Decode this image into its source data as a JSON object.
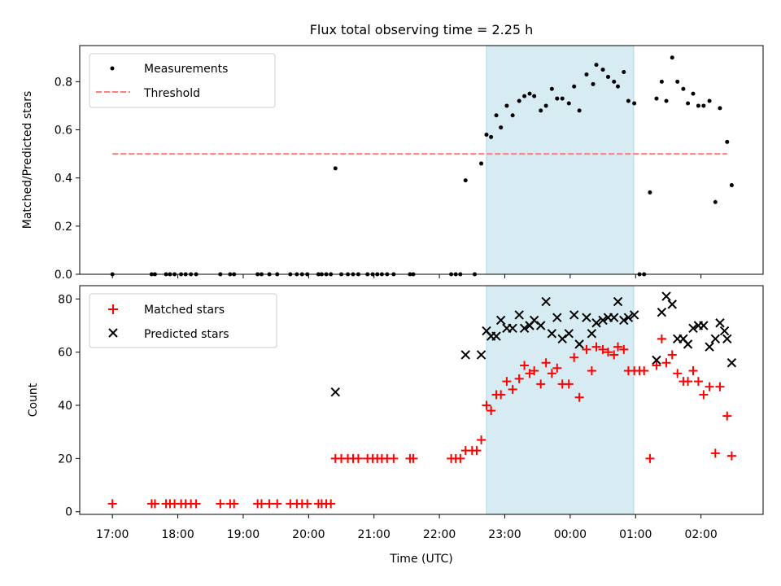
{
  "chart_data": {
    "type": "scatter",
    "title": "Flux total observing time = 2.25 h",
    "xlabel": "Time (UTC)",
    "x_unit": "hours, continuing past midnight (24.0 = 00:00)",
    "xlim": [
      16.5,
      26.95
    ],
    "xticks": [
      {
        "x": 17,
        "label": "17:00"
      },
      {
        "x": 18,
        "label": "18:00"
      },
      {
        "x": 19,
        "label": "19:00"
      },
      {
        "x": 20,
        "label": "20:00"
      },
      {
        "x": 21,
        "label": "21:00"
      },
      {
        "x": 22,
        "label": "22:00"
      },
      {
        "x": 23,
        "label": "23:00"
      },
      {
        "x": 24,
        "label": "00:00"
      },
      {
        "x": 25,
        "label": "01:00"
      },
      {
        "x": 26,
        "label": "02:00"
      }
    ],
    "highlight_span": {
      "x0": 22.72,
      "x1": 24.97,
      "color": "#add8e6"
    },
    "panels": [
      {
        "ylabel": "Matched/Predicted stars",
        "ylim": [
          0,
          0.95
        ],
        "yticks": [
          "0.0",
          "0.2",
          "0.4",
          "0.6",
          "0.8"
        ],
        "legend_position": "upper left",
        "series": [
          {
            "name": "Measurements",
            "kind": "dot",
            "color": "#000000",
            "points": [
              [
                17.0,
                0.0
              ],
              [
                17.6,
                0.0
              ],
              [
                17.65,
                0.0
              ],
              [
                17.82,
                0.0
              ],
              [
                17.88,
                0.0
              ],
              [
                17.95,
                0.0
              ],
              [
                18.05,
                0.0
              ],
              [
                18.12,
                0.0
              ],
              [
                18.2,
                0.0
              ],
              [
                18.28,
                0.0
              ],
              [
                18.65,
                0.0
              ],
              [
                18.8,
                0.0
              ],
              [
                18.86,
                0.0
              ],
              [
                19.22,
                0.0
              ],
              [
                19.28,
                0.0
              ],
              [
                19.4,
                0.0
              ],
              [
                19.52,
                0.0
              ],
              [
                19.72,
                0.0
              ],
              [
                19.82,
                0.0
              ],
              [
                19.9,
                0.0
              ],
              [
                19.98,
                0.0
              ],
              [
                20.15,
                0.0
              ],
              [
                20.2,
                0.0
              ],
              [
                20.27,
                0.0
              ],
              [
                20.34,
                0.0
              ],
              [
                20.41,
                0.44
              ],
              [
                20.5,
                0.0
              ],
              [
                20.6,
                0.0
              ],
              [
                20.68,
                0.0
              ],
              [
                20.76,
                0.0
              ],
              [
                20.9,
                0.0
              ],
              [
                20.98,
                0.0
              ],
              [
                21.05,
                0.0
              ],
              [
                21.12,
                0.0
              ],
              [
                21.2,
                0.0
              ],
              [
                21.3,
                0.0
              ],
              [
                21.55,
                0.0
              ],
              [
                21.6,
                0.0
              ],
              [
                22.18,
                0.0
              ],
              [
                22.25,
                0.0
              ],
              [
                22.32,
                0.0
              ],
              [
                22.4,
                0.39
              ],
              [
                22.54,
                0.0
              ],
              [
                22.64,
                0.46
              ],
              [
                22.72,
                0.58
              ],
              [
                22.79,
                0.57
              ],
              [
                22.87,
                0.66
              ],
              [
                22.94,
                0.61
              ],
              [
                23.03,
                0.7
              ],
              [
                23.12,
                0.66
              ],
              [
                23.22,
                0.72
              ],
              [
                23.3,
                0.74
              ],
              [
                23.38,
                0.75
              ],
              [
                23.45,
                0.74
              ],
              [
                23.55,
                0.68
              ],
              [
                23.63,
                0.7
              ],
              [
                23.72,
                0.77
              ],
              [
                23.8,
                0.73
              ],
              [
                23.88,
                0.73
              ],
              [
                23.98,
                0.71
              ],
              [
                24.06,
                0.78
              ],
              [
                24.14,
                0.68
              ],
              [
                24.25,
                0.83
              ],
              [
                24.35,
                0.79
              ],
              [
                24.4,
                0.87
              ],
              [
                24.5,
                0.85
              ],
              [
                24.58,
                0.82
              ],
              [
                24.67,
                0.8
              ],
              [
                24.73,
                0.78
              ],
              [
                24.82,
                0.84
              ],
              [
                24.89,
                0.72
              ],
              [
                24.98,
                0.71
              ],
              [
                25.06,
                0.0
              ],
              [
                25.13,
                0.0
              ],
              [
                25.22,
                0.34
              ],
              [
                25.32,
                0.73
              ],
              [
                25.4,
                0.8
              ],
              [
                25.47,
                0.72
              ],
              [
                25.56,
                0.9
              ],
              [
                25.64,
                0.8
              ],
              [
                25.73,
                0.77
              ],
              [
                25.8,
                0.71
              ],
              [
                25.88,
                0.75
              ],
              [
                25.96,
                0.7
              ],
              [
                26.04,
                0.7
              ],
              [
                26.13,
                0.72
              ],
              [
                26.22,
                0.3
              ],
              [
                26.29,
                0.69
              ],
              [
                26.4,
                0.55
              ],
              [
                26.47,
                0.37
              ]
            ]
          },
          {
            "name": "Threshold",
            "kind": "dashed-line",
            "color": "#ff7f7f",
            "x": [
              17.0,
              26.4
            ],
            "y": [
              0.5,
              0.5
            ]
          }
        ]
      },
      {
        "ylabel": "Count",
        "ylim": [
          -1,
          85
        ],
        "yticks": [
          "0",
          "20",
          "40",
          "60",
          "80"
        ],
        "legend_position": "upper left",
        "series": [
          {
            "name": "Matched stars",
            "kind": "plus",
            "color": "#ff0000",
            "points": [
              [
                17.0,
                3
              ],
              [
                17.6,
                3
              ],
              [
                17.65,
                3
              ],
              [
                17.82,
                3
              ],
              [
                17.88,
                3
              ],
              [
                17.95,
                3
              ],
              [
                18.05,
                3
              ],
              [
                18.12,
                3
              ],
              [
                18.2,
                3
              ],
              [
                18.28,
                3
              ],
              [
                18.65,
                3
              ],
              [
                18.8,
                3
              ],
              [
                18.86,
                3
              ],
              [
                19.22,
                3
              ],
              [
                19.28,
                3
              ],
              [
                19.4,
                3
              ],
              [
                19.52,
                3
              ],
              [
                19.72,
                3
              ],
              [
                19.82,
                3
              ],
              [
                19.9,
                3
              ],
              [
                19.98,
                3
              ],
              [
                20.15,
                3
              ],
              [
                20.2,
                3
              ],
              [
                20.27,
                3
              ],
              [
                20.34,
                3
              ],
              [
                20.41,
                20
              ],
              [
                20.5,
                20
              ],
              [
                20.6,
                20
              ],
              [
                20.68,
                20
              ],
              [
                20.76,
                20
              ],
              [
                20.9,
                20
              ],
              [
                20.98,
                20
              ],
              [
                21.05,
                20
              ],
              [
                21.12,
                20
              ],
              [
                21.2,
                20
              ],
              [
                21.3,
                20
              ],
              [
                21.55,
                20
              ],
              [
                21.6,
                20
              ],
              [
                22.18,
                20
              ],
              [
                22.25,
                20
              ],
              [
                22.32,
                20
              ],
              [
                22.4,
                23
              ],
              [
                22.5,
                23
              ],
              [
                22.57,
                23
              ],
              [
                22.64,
                27
              ],
              [
                22.72,
                40
              ],
              [
                22.79,
                38
              ],
              [
                22.87,
                44
              ],
              [
                22.94,
                44
              ],
              [
                23.03,
                49
              ],
              [
                23.12,
                46
              ],
              [
                23.22,
                50
              ],
              [
                23.3,
                55
              ],
              [
                23.38,
                52
              ],
              [
                23.45,
                53
              ],
              [
                23.55,
                48
              ],
              [
                23.63,
                56
              ],
              [
                23.72,
                52
              ],
              [
                23.8,
                54
              ],
              [
                23.88,
                48
              ],
              [
                23.98,
                48
              ],
              [
                24.06,
                58
              ],
              [
                24.14,
                43
              ],
              [
                24.25,
                61
              ],
              [
                24.33,
                53
              ],
              [
                24.4,
                62
              ],
              [
                24.5,
                61
              ],
              [
                24.58,
                60
              ],
              [
                24.67,
                59
              ],
              [
                24.73,
                62
              ],
              [
                24.82,
                61
              ],
              [
                24.89,
                53
              ],
              [
                24.98,
                53
              ],
              [
                25.06,
                53
              ],
              [
                25.13,
                53
              ],
              [
                25.22,
                20
              ],
              [
                25.32,
                55
              ],
              [
                25.4,
                65
              ],
              [
                25.47,
                56
              ],
              [
                25.56,
                59
              ],
              [
                25.64,
                52
              ],
              [
                25.73,
                49
              ],
              [
                25.8,
                49
              ],
              [
                25.88,
                53
              ],
              [
                25.96,
                49
              ],
              [
                26.04,
                44
              ],
              [
                26.13,
                47
              ],
              [
                26.22,
                22
              ],
              [
                26.29,
                47
              ],
              [
                26.4,
                36
              ],
              [
                26.47,
                21
              ]
            ]
          },
          {
            "name": "Predicted stars",
            "kind": "cross",
            "color": "#000000",
            "points": [
              [
                20.41,
                45
              ],
              [
                22.4,
                59
              ],
              [
                22.64,
                59
              ],
              [
                22.72,
                68
              ],
              [
                22.79,
                66
              ],
              [
                22.87,
                66
              ],
              [
                22.94,
                72
              ],
              [
                23.03,
                69
              ],
              [
                23.12,
                69
              ],
              [
                23.22,
                74
              ],
              [
                23.3,
                69
              ],
              [
                23.38,
                70
              ],
              [
                23.45,
                72
              ],
              [
                23.55,
                70
              ],
              [
                23.63,
                79
              ],
              [
                23.72,
                67
              ],
              [
                23.8,
                73
              ],
              [
                23.88,
                65
              ],
              [
                23.98,
                67
              ],
              [
                24.06,
                74
              ],
              [
                24.14,
                63
              ],
              [
                24.25,
                73
              ],
              [
                24.33,
                67
              ],
              [
                24.4,
                71
              ],
              [
                24.5,
                72
              ],
              [
                24.58,
                73
              ],
              [
                24.67,
                73
              ],
              [
                24.73,
                79
              ],
              [
                24.82,
                72
              ],
              [
                24.89,
                73
              ],
              [
                24.98,
                74
              ],
              [
                25.32,
                57
              ],
              [
                25.4,
                75
              ],
              [
                25.47,
                81
              ],
              [
                25.56,
                78
              ],
              [
                25.64,
                65
              ],
              [
                25.73,
                65
              ],
              [
                25.8,
                63
              ],
              [
                25.88,
                69
              ],
              [
                25.96,
                70
              ],
              [
                26.04,
                70
              ],
              [
                26.13,
                62
              ],
              [
                26.22,
                65
              ],
              [
                26.29,
                71
              ],
              [
                26.36,
                68
              ],
              [
                26.4,
                65
              ],
              [
                26.47,
                56
              ]
            ]
          }
        ]
      }
    ]
  }
}
